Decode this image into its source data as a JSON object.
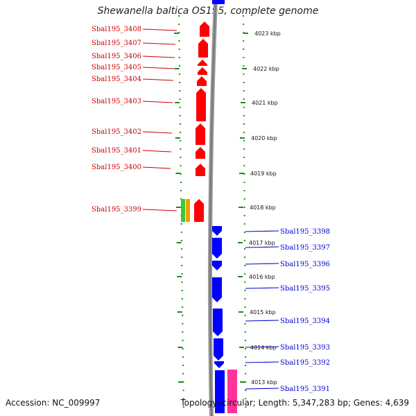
{
  "title": "Shewanella baltica OS195, complete genome",
  "accession": "Accession: NC_009997",
  "summary": "Topology: circular; Length: 5,347,283 bp; Genes: 4,639",
  "colors": {
    "reverse_strand": "#ff0000",
    "forward_strand": "#0000ff",
    "label_red": "#cc0000",
    "label_blue": "#0000cc",
    "tick": "#1a8a1a",
    "backbone": "#777777",
    "rna_green": "#33cc33",
    "rna_orange": "#ff9900",
    "pink": "#ff3399"
  },
  "scale_labels": [
    "4023 kbp",
    "4022 kbp",
    "4021 kbp",
    "4020 kbp",
    "4019 kbp",
    "4018 kbp",
    "4017 kbp",
    "4016 kbp",
    "4015 kbp",
    "4014 kbp",
    "4013 kbp"
  ],
  "genes_left": [
    {
      "label": "Sbal195_3408",
      "strand": "reverse"
    },
    {
      "label": "Sbal195_3407",
      "strand": "reverse"
    },
    {
      "label": "Sbal195_3406",
      "strand": "reverse"
    },
    {
      "label": "Sbal195_3405",
      "strand": "reverse"
    },
    {
      "label": "Sbal195_3404",
      "strand": "reverse"
    },
    {
      "label": "Sbal195_3403",
      "strand": "reverse"
    },
    {
      "label": "Sbal195_3402",
      "strand": "reverse"
    },
    {
      "label": "Sbal195_3401",
      "strand": "reverse"
    },
    {
      "label": "Sbal195_3400",
      "strand": "reverse"
    },
    {
      "label": "Sbal195_3399",
      "strand": "reverse"
    }
  ],
  "genes_right": [
    {
      "label": "Sbal195_3398",
      "strand": "forward"
    },
    {
      "label": "Sbal195_3397",
      "strand": "forward"
    },
    {
      "label": "Sbal195_3396",
      "strand": "forward"
    },
    {
      "label": "Sbal195_3395",
      "strand": "forward"
    },
    {
      "label": "Sbal195_3394",
      "strand": "forward"
    },
    {
      "label": "Sbal195_3393",
      "strand": "forward"
    },
    {
      "label": "Sbal195_3392",
      "strand": "forward"
    },
    {
      "label": "Sbal195_3391",
      "strand": "forward"
    }
  ]
}
